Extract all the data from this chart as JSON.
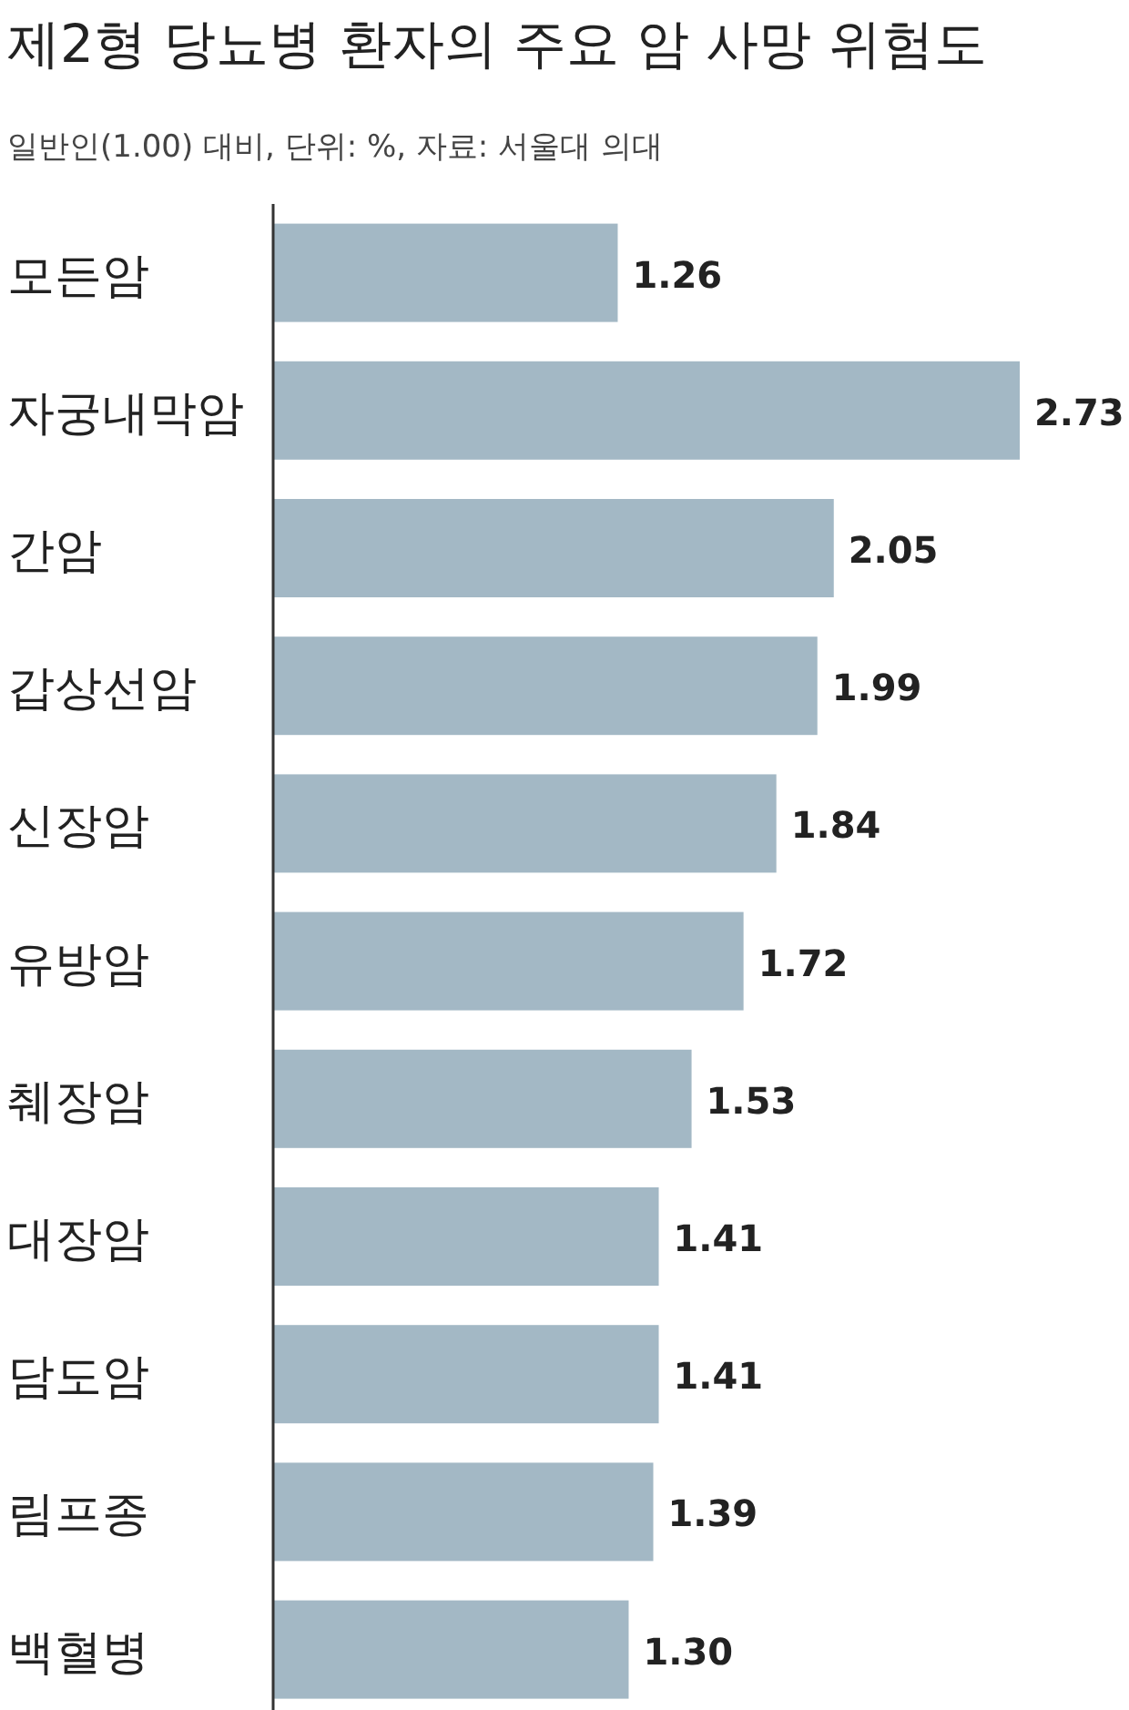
{
  "chart_data": {
    "type": "bar",
    "orientation": "horizontal",
    "title": "제2형 당뇨병 환자의 주요 암 사망 위험도",
    "subtitle": "일반인(1.00) 대비, 단위: %, 자료: 서울대 의대",
    "categories": [
      "모든암",
      "자궁내막암",
      "간암",
      "갑상선암",
      "신장암",
      "유방암",
      "췌장암",
      "대장암",
      "담도암",
      "림프종",
      "백혈병"
    ],
    "values": [
      1.26,
      2.73,
      2.05,
      1.99,
      1.84,
      1.72,
      1.53,
      1.41,
      1.41,
      1.39,
      1.3
    ],
    "value_labels": [
      "1.26",
      "2.73",
      "2.05",
      "1.99",
      "1.84",
      "1.72",
      "1.53",
      "1.41",
      "1.41",
      "1.39",
      "1.30"
    ],
    "color": "#a3b8c5"
  }
}
